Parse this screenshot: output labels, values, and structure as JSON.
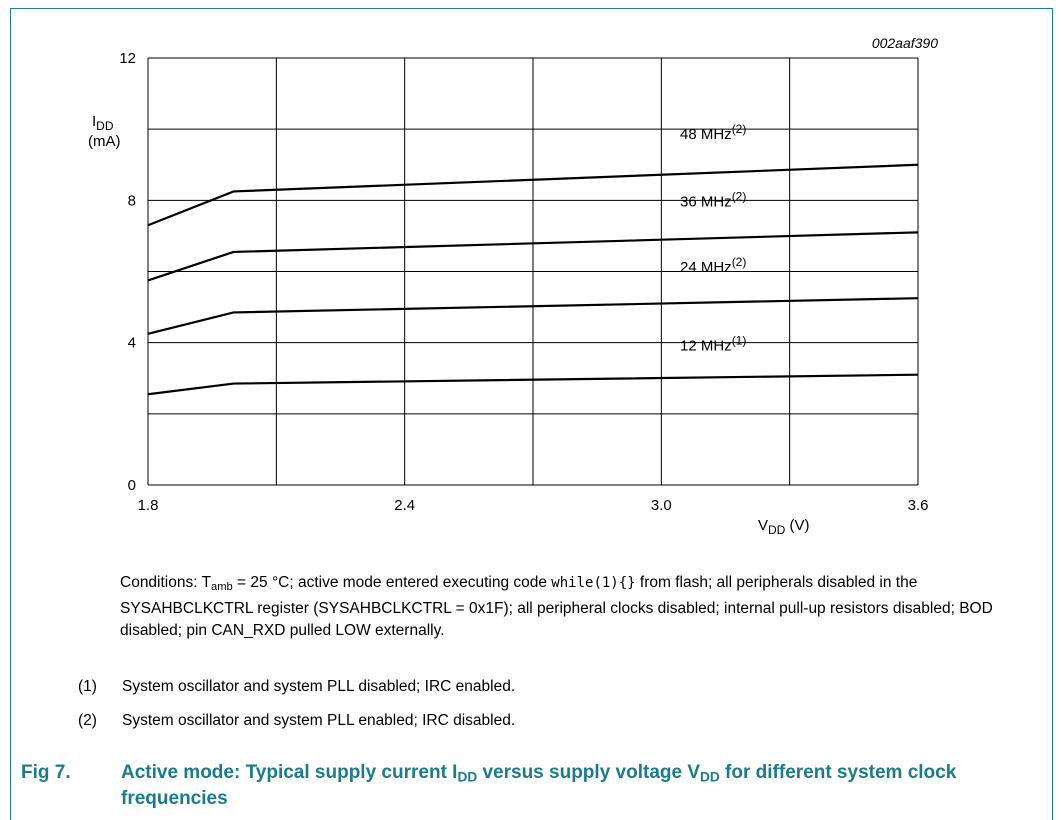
{
  "figure_code": "002aaf390",
  "chart_data": {
    "type": "line",
    "x": [
      1.8,
      2.0,
      3.6
    ],
    "xlim": [
      1.8,
      3.6
    ],
    "ylim": [
      0,
      12
    ],
    "x_ticks": [
      "1.8",
      "2.4",
      "3.0",
      "3.6"
    ],
    "y_ticks": [
      "0",
      "4",
      "8",
      "12"
    ],
    "x_grid": [
      1.8,
      2.1,
      2.4,
      2.7,
      3.0,
      3.3,
      3.6
    ],
    "y_grid": [
      0,
      2,
      4,
      6,
      8,
      10,
      12
    ],
    "grid": true,
    "ylabel_main": "I",
    "ylabel_sub": "DD",
    "ylabel_unit": "(mA)",
    "xlabel_main": "V",
    "xlabel_sub": "DD",
    "xlabel_unit": " (V)",
    "series": [
      {
        "name": "48 MHz",
        "note": "(2)",
        "values": [
          7.3,
          8.25,
          9.0
        ]
      },
      {
        "name": "36 MHz",
        "note": "(2)",
        "values": [
          5.75,
          6.55,
          7.1
        ]
      },
      {
        "name": "24 MHz",
        "note": "(2)",
        "values": [
          4.25,
          4.85,
          5.25
        ]
      },
      {
        "name": "12 MHz",
        "note": "(1)",
        "values": [
          2.55,
          2.85,
          3.1
        ]
      }
    ]
  },
  "conditions": {
    "t1": "Conditions: T",
    "tsub": "amb",
    "t2": " = 25 °C; active mode entered executing code ",
    "code": "while(1){}",
    "t3": " from flash; all peripherals disabled in the SYSAHBCLKCTRL register (SYSAHBCLKCTRL = 0x1F); all peripheral clocks disabled; internal pull-up resistors disabled; BOD disabled; pin CAN_RXD pulled LOW externally."
  },
  "notes": [
    {
      "num": "(1)",
      "text": "System oscillator and system PLL disabled; IRC enabled."
    },
    {
      "num": "(2)",
      "text": "System oscillator and system PLL enabled; IRC disabled."
    }
  ],
  "caption": {
    "number": "Fig 7.",
    "p1": "Active mode: Typical supply current I",
    "sub1": "DD",
    "p2": " versus supply voltage V",
    "sub2": "DD",
    "p3": " for different system clock frequencies"
  },
  "colors": {
    "accent": "#1a7b8a",
    "line": "#000000"
  }
}
